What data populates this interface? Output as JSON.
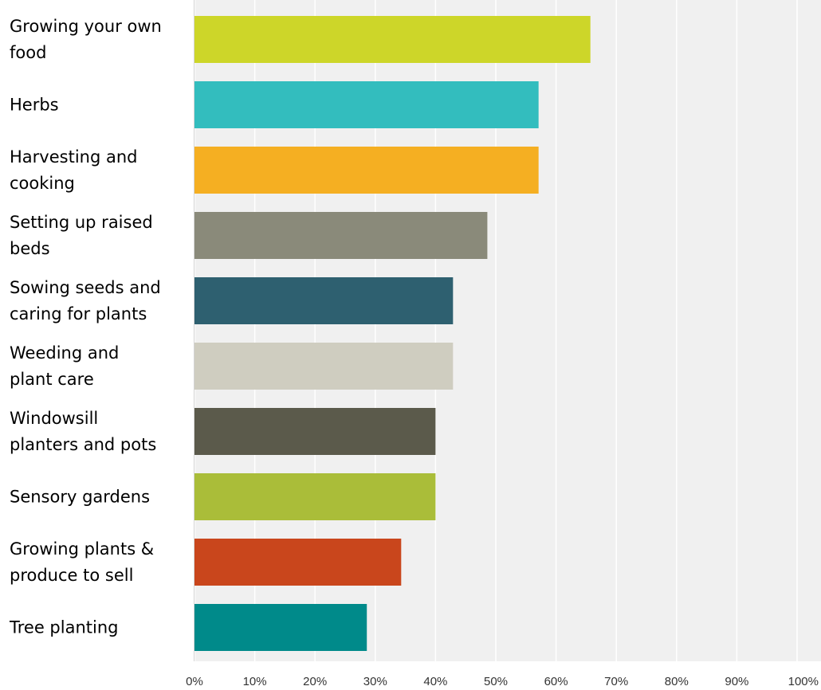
{
  "chart_data": {
    "type": "bar",
    "orientation": "horizontal",
    "categories": [
      "Growing your own food",
      "Herbs",
      "Harvesting and cooking",
      "Setting up raised beds",
      "Sowing seeds and caring for plants",
      "Weeding and plant care",
      "Windowsill planters and pots",
      "Sensory gardens",
      "Growing plants & produce to sell",
      "Tree planting"
    ],
    "category_label_lines": [
      [
        "Growing your own",
        "food"
      ],
      [
        "Herbs"
      ],
      [
        "Harvesting and",
        "cooking"
      ],
      [
        "Setting up raised",
        "beds"
      ],
      [
        "Sowing seeds and",
        "caring for plants"
      ],
      [
        "Weeding and",
        "plant care"
      ],
      [
        "Windowsill",
        "planters and pots"
      ],
      [
        "Sensory gardens"
      ],
      [
        "Growing plants &",
        "produce to sell"
      ],
      [
        "Tree planting"
      ]
    ],
    "values": [
      65.7,
      57.1,
      57.1,
      48.6,
      42.9,
      42.9,
      40.0,
      40.0,
      34.3,
      28.6
    ],
    "colors": [
      "#cdd629",
      "#33bdbe",
      "#f5af22",
      "#8a8a7a",
      "#2e6070",
      "#cfcdc0",
      "#5b5a4b",
      "#aabd39",
      "#c9461c",
      "#008a8a"
    ],
    "x_ticks": [
      "0%",
      "10%",
      "20%",
      "30%",
      "40%",
      "50%",
      "60%",
      "70%",
      "80%",
      "90%",
      "100%"
    ],
    "xlim": [
      0,
      100
    ],
    "grid": true,
    "legend": "none",
    "background_color": "#f0f0f0",
    "grid_color": "#ffffff"
  }
}
